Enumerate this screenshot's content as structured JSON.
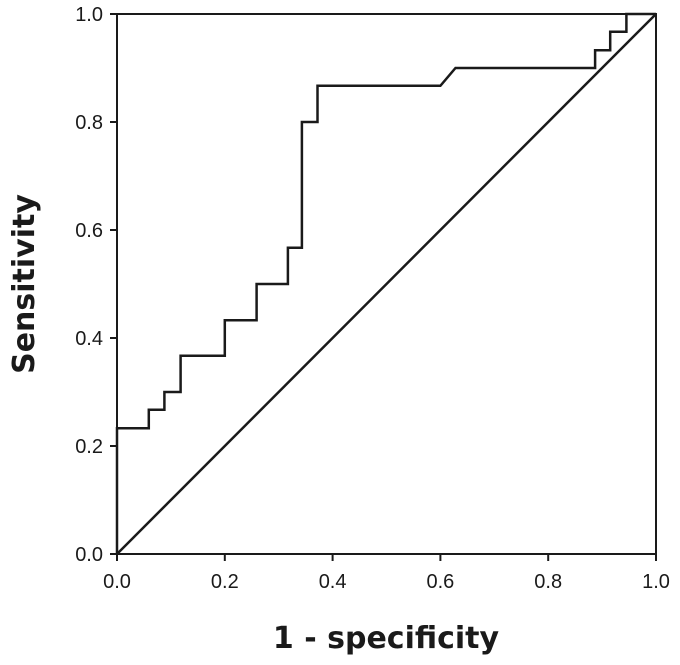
{
  "chart_data": {
    "type": "line",
    "title": "",
    "xlabel": "1 - specificity",
    "ylabel": "Sensitivity",
    "xlim": [
      0.0,
      1.0
    ],
    "ylim": [
      0.0,
      1.0
    ],
    "grid": false,
    "x_ticks": [
      "0.0",
      "0.2",
      "0.4",
      "0.6",
      "0.8",
      "1.0"
    ],
    "y_ticks": [
      "0.0",
      "0.2",
      "0.4",
      "0.6",
      "0.8",
      "1.0"
    ],
    "series": [
      {
        "points": [
          [
            0.0,
            0.0
          ],
          [
            0.0,
            0.233
          ],
          [
            0.059,
            0.233
          ],
          [
            0.059,
            0.267
          ],
          [
            0.088,
            0.267
          ],
          [
            0.088,
            0.3
          ],
          [
            0.118,
            0.3
          ],
          [
            0.118,
            0.367
          ],
          [
            0.2,
            0.367
          ],
          [
            0.2,
            0.433
          ],
          [
            0.259,
            0.433
          ],
          [
            0.259,
            0.5
          ],
          [
            0.317,
            0.5
          ],
          [
            0.317,
            0.567
          ],
          [
            0.343,
            0.567
          ],
          [
            0.343,
            0.8
          ],
          [
            0.372,
            0.8
          ],
          [
            0.372,
            0.867
          ],
          [
            0.6,
            0.867
          ],
          [
            0.628,
            0.9
          ],
          [
            0.887,
            0.9
          ],
          [
            0.887,
            0.933
          ],
          [
            0.915,
            0.933
          ],
          [
            0.915,
            0.967
          ],
          [
            0.945,
            0.967
          ],
          [
            0.945,
            1.0
          ],
          [
            1.0,
            1.0
          ]
        ]
      },
      {
        "points": [
          [
            0.0,
            0.0
          ],
          [
            1.0,
            1.0
          ]
        ]
      }
    ]
  }
}
